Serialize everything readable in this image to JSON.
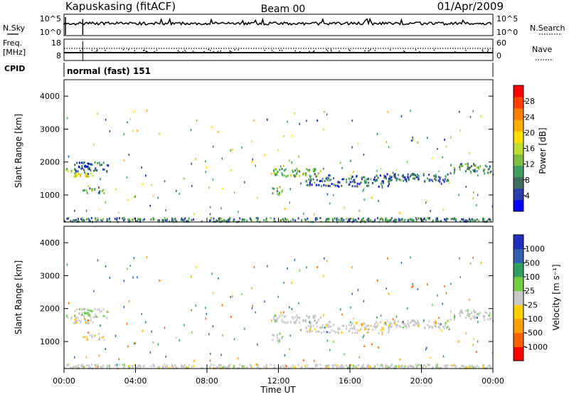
{
  "header": {
    "station": "Kapuskasing (fitACF)",
    "beam": "Beam 00",
    "date": "01/Apr/2009"
  },
  "noise_panel": {
    "left_label": "N.Sky",
    "right_label": "N.Search",
    "left_ticks": [
      "10^5",
      "10^0"
    ],
    "right_ticks": [
      "10^5",
      "10^0"
    ]
  },
  "freq_panel": {
    "left_label_line1": "Freq.",
    "left_label_line2": "[MHz]",
    "right_label": "Nave",
    "left_ticks": [
      "18",
      "8"
    ],
    "right_ticks": [
      "60",
      "0"
    ]
  },
  "cpid": {
    "label": "CPID",
    "text": "normal (fast) 151"
  },
  "power_panel": {
    "ylabel": "Slant Range [km]",
    "yticks": [
      "4000",
      "3000",
      "2000",
      "1000"
    ],
    "colorbar_label": "Power [dB]",
    "colorbar_ticks": [
      "28",
      "24",
      "20",
      "16",
      "12",
      "8",
      "4"
    ],
    "colors": [
      "#0000ff",
      "#2a3fae",
      "#3f6e5f",
      "#3f9f5f",
      "#7fbf3f",
      "#bfdf2f",
      "#ffdf00",
      "#ffaf00",
      "#ff7f00",
      "#ff3f00",
      "#ff0000"
    ]
  },
  "velocity_panel": {
    "ylabel": "Slant Range [km]",
    "yticks": [
      "4000",
      "3000",
      "2000",
      "1000"
    ],
    "colorbar_label": "Velocity [m s⁻¹]",
    "colorbar_ticks": [
      "1000",
      "500",
      "100",
      "25",
      "-25",
      "-100",
      "-500",
      "-1000"
    ],
    "colors": [
      "#2030c0",
      "#3060b0",
      "#30a060",
      "#70d040",
      "#c8c8c8",
      "#ffd000",
      "#ffa000",
      "#ff6000",
      "#ff0000"
    ]
  },
  "xaxis": {
    "ticks": [
      "00:00",
      "04:00",
      "08:00",
      "12:00",
      "16:00",
      "20:00",
      "00:00"
    ],
    "label": "Time UT"
  },
  "chart_data": {
    "type": "heatmap",
    "title": "Kapuskasing (fitACF) Beam 00 01/Apr/2009",
    "xlabel": "Time UT",
    "ylabel": "Slant Range [km]",
    "x_range_hours": [
      0,
      24
    ],
    "y_range_km": [
      180,
      4500
    ],
    "power_range_db": [
      0,
      32
    ],
    "velocity_range": [
      -1300,
      1300
    ],
    "echo_regions": [
      {
        "t0": 0.0,
        "t1": 0.6,
        "r0": 1650,
        "r1": 1800,
        "power": 14,
        "velocity": 0
      },
      {
        "t0": 0.4,
        "t1": 1.6,
        "r0": 1550,
        "r1": 1650,
        "power": 17,
        "velocity": 0
      },
      {
        "t0": 1.0,
        "t1": 2.3,
        "r0": 1050,
        "r1": 1250,
        "power": 10,
        "velocity": -10
      },
      {
        "t0": 0.5,
        "t1": 2.5,
        "r0": 1700,
        "r1": 2000,
        "power": 6,
        "velocity": 10
      },
      {
        "t0": 11.6,
        "t1": 12.2,
        "r0": 1000,
        "r1": 1250,
        "power": 13,
        "velocity": 0
      },
      {
        "t0": 11.7,
        "t1": 14.5,
        "r0": 1550,
        "r1": 1800,
        "power": 12,
        "velocity": 0
      },
      {
        "t0": 13.5,
        "t1": 18.5,
        "r0": 1250,
        "r1": 1600,
        "power": 6,
        "velocity": -5
      },
      {
        "t0": 18.0,
        "t1": 21.5,
        "r0": 1400,
        "r1": 1650,
        "power": 7,
        "velocity": 0
      },
      {
        "t0": 21.5,
        "t1": 24.0,
        "r0": 1600,
        "r1": 1950,
        "power": 10,
        "velocity": 5
      },
      {
        "t0": 0.0,
        "t1": 24.0,
        "r0": 180,
        "r1": 300,
        "power": 8,
        "velocity": 0
      }
    ]
  }
}
